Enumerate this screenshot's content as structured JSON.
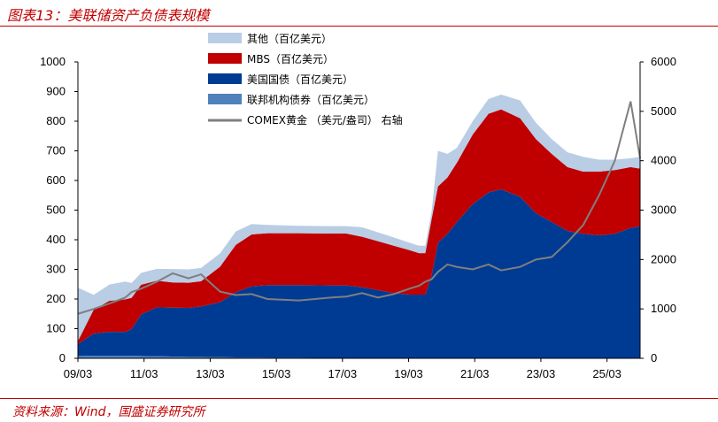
{
  "figure": {
    "title": "图表13：美联储资产负债表规模",
    "source": "资料来源：Wind，国盛证券研究所"
  },
  "chart_data": {
    "type": "area",
    "stacked": true,
    "x_tick_labels": [
      "09/03",
      "11/03",
      "13/03",
      "15/03",
      "17/03",
      "19/03",
      "21/03",
      "23/03",
      "25/03"
    ],
    "x_range": [
      "2009-01",
      "2026-10"
    ],
    "y_left": {
      "range": [
        0,
        1000
      ],
      "ticks": [
        0,
        100,
        200,
        300,
        400,
        500,
        600,
        700,
        800,
        900,
        1000
      ]
    },
    "y_right": {
      "range": [
        0,
        6000
      ],
      "ticks": [
        0,
        1000,
        2000,
        3000,
        4000,
        5000,
        6000
      ]
    },
    "x": [
      2009.0,
      2009.5,
      2010.0,
      2010.5,
      2010.7,
      2011.0,
      2011.5,
      2012.0,
      2012.5,
      2012.9,
      2013.5,
      2014.0,
      2014.5,
      2015.0,
      2016.0,
      2017.0,
      2017.5,
      2018.0,
      2018.5,
      2019.0,
      2019.5,
      2019.8,
      2020.0,
      2020.2,
      2020.4,
      2020.7,
      2021.0,
      2021.5,
      2022.0,
      2022.4,
      2023.0,
      2023.5,
      2024.0,
      2024.5,
      2025.0,
      2025.5,
      2026.0,
      2026.5,
      2026.8
    ],
    "series": [
      {
        "name": "联邦机构债券（百亿美元）",
        "color": "#4f81bd",
        "values": [
          8,
          9,
          9,
          9,
          9,
          8,
          7,
          6,
          5,
          5,
          4,
          3,
          3,
          2,
          2,
          1,
          1,
          0,
          0,
          0,
          0,
          0,
          0,
          0,
          0,
          0,
          0,
          0,
          0,
          0,
          0,
          0,
          0,
          0,
          0,
          0,
          0,
          0,
          0
        ]
      },
      {
        "name": "美国国债（百亿美元）",
        "color": "#003b93",
        "values": [
          40,
          75,
          80,
          80,
          90,
          140,
          165,
          165,
          165,
          170,
          185,
          220,
          240,
          245,
          245,
          245,
          245,
          240,
          230,
          220,
          215,
          215,
          215,
          280,
          390,
          420,
          460,
          520,
          560,
          570,
          545,
          490,
          460,
          430,
          420,
          415,
          420,
          440,
          445
        ]
      },
      {
        "name": "MBS（百亿美元）",
        "color": "#c00000",
        "values": [
          10,
          80,
          105,
          110,
          105,
          100,
          90,
          85,
          85,
          85,
          120,
          160,
          175,
          175,
          175,
          175,
          175,
          170,
          165,
          160,
          150,
          140,
          140,
          190,
          190,
          190,
          200,
          235,
          265,
          270,
          265,
          250,
          230,
          215,
          210,
          215,
          215,
          205,
          195
        ]
      },
      {
        "name": "其他（百亿美元）",
        "color": "#b9cde5",
        "values": [
          180,
          50,
          55,
          60,
          50,
          40,
          40,
          45,
          45,
          45,
          45,
          45,
          35,
          28,
          25,
          25,
          25,
          32,
          30,
          28,
          25,
          25,
          25,
          25,
          120,
          80,
          50,
          45,
          50,
          50,
          60,
          55,
          50,
          50,
          50,
          40,
          35,
          30,
          40
        ]
      },
      {
        "name": "COMEX黄金（美元/盎司）右轴",
        "color": "#7f7f7f",
        "axis": "right",
        "type": "line",
        "values": [
          900,
          1000,
          1110,
          1230,
          1340,
          1410,
          1550,
          1720,
          1620,
          1700,
          1350,
          1280,
          1300,
          1200,
          1170,
          1230,
          1250,
          1320,
          1230,
          1300,
          1410,
          1470,
          1550,
          1600,
          1750,
          1900,
          1850,
          1800,
          1900,
          1780,
          1850,
          2000,
          2050,
          2350,
          2700,
          3300,
          4000,
          5200,
          4050
        ]
      }
    ],
    "legend_order": [
      {
        "label": "其他（百亿美元）",
        "color": "#b9cde5",
        "shape": "box"
      },
      {
        "label": "MBS（百亿美元）",
        "color": "#c00000",
        "shape": "box"
      },
      {
        "label": "美国国债（百亿美元）",
        "color": "#003b93",
        "shape": "box"
      },
      {
        "label": "联邦机构债券（百亿美元）",
        "color": "#4f81bd",
        "shape": "box"
      },
      {
        "label": "COMEX黄金  （美元/盎司）  右轴",
        "color": "#7f7f7f",
        "shape": "line"
      }
    ],
    "legend_position": "top-left",
    "grid": false
  }
}
